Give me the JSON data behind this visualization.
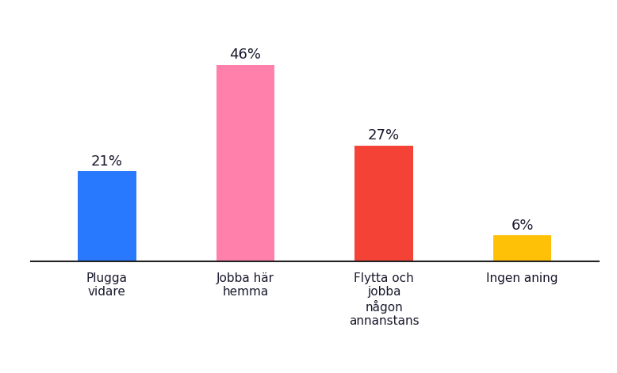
{
  "categories": [
    "Plugga\nvidare",
    "Jobba här\nhemma",
    "Flytta och\njobba\nnågon\nannanstans",
    "Ingen aning"
  ],
  "values": [
    21,
    46,
    27,
    6
  ],
  "labels": [
    "21%",
    "46%",
    "27%",
    "6%"
  ],
  "bar_colors": [
    "#2979FF",
    "#FF80AB",
    "#F44336",
    "#FFC107"
  ],
  "background_color": "#FFFFFF",
  "text_color": "#1a1a2e",
  "ylim": [
    0,
    55
  ],
  "bar_width": 0.42,
  "label_fontsize": 13,
  "tick_fontsize": 11
}
